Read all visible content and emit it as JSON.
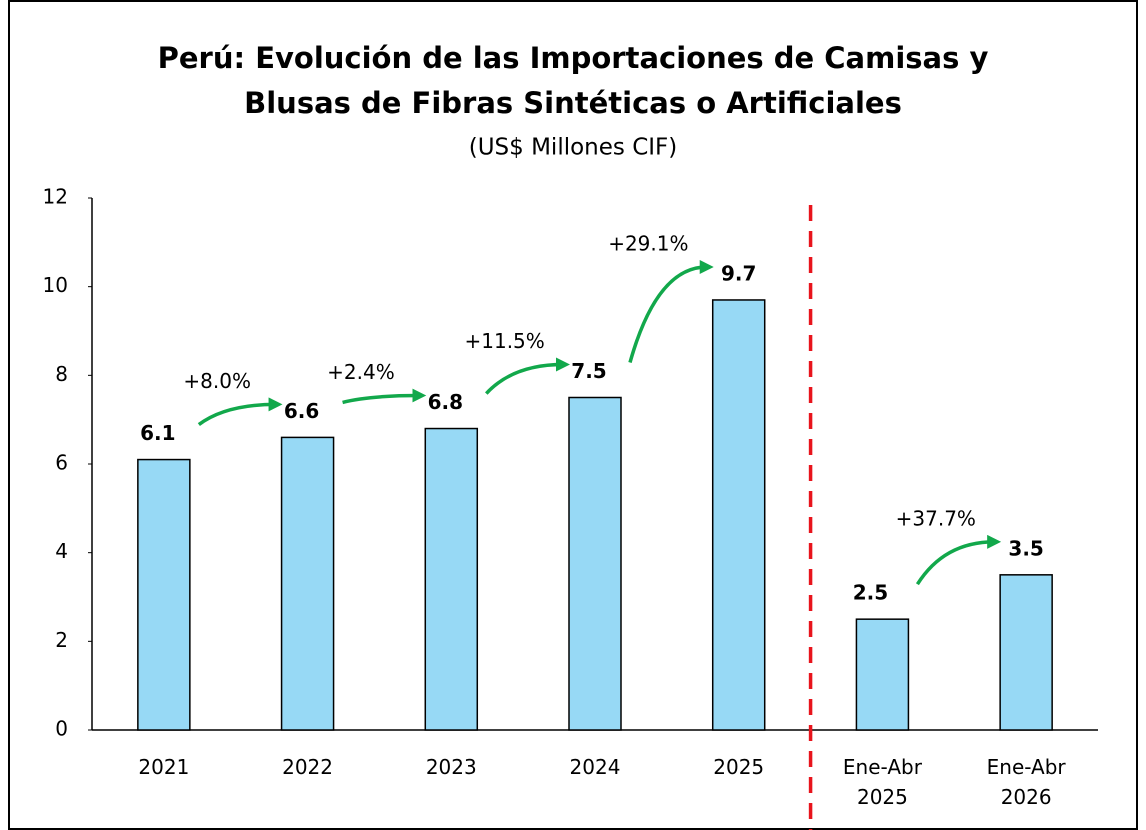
{
  "chart_data": {
    "type": "bar",
    "title": "Perú: Evolución de las Importaciones de Camisas y Blusas de Fibras Sintéticas o Artificiales",
    "subtitle": "(US$ Millones CIF)",
    "categories": [
      "2021",
      "2022",
      "2023",
      "2024",
      "2025",
      "Ene-Abr 2025",
      "Ene-Abr 2026"
    ],
    "values": [
      6.1,
      6.6,
      6.8,
      7.5,
      9.7,
      2.5,
      3.5
    ],
    "color": "#97d9f5",
    "ylim": [
      0,
      12
    ],
    "yticks": [
      0,
      2,
      4,
      6,
      8,
      10,
      12
    ],
    "grid": false,
    "growth_labels": [
      "+8.0%",
      "+2.4%",
      "+11.5%",
      "+29.1%",
      "+37.7%"
    ]
  }
}
